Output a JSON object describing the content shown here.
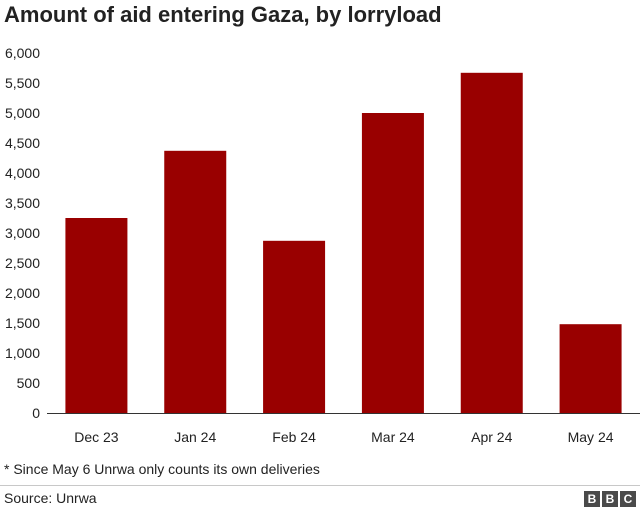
{
  "header": {
    "title": "Amount of aid entering Gaza, by lorryload"
  },
  "chart_data": {
    "type": "bar",
    "title": "Amount of aid entering Gaza, by lorryload",
    "xlabel": "",
    "ylabel": "",
    "categories": [
      "Dec 23",
      "Jan 24",
      "Feb 24",
      "Mar 24",
      "Apr 24",
      "May 24"
    ],
    "values": [
      3250,
      4370,
      2870,
      5000,
      5670,
      1480
    ],
    "ylim": [
      0,
      6000
    ],
    "yticks": [
      0,
      500,
      1000,
      1500,
      2000,
      2500,
      3000,
      3500,
      4000,
      4500,
      5000,
      5500,
      6000
    ],
    "ytick_labels": [
      "0",
      "500",
      "1,000",
      "1,500",
      "2,000",
      "2,500",
      "3,000",
      "3,500",
      "4,000",
      "4,500",
      "5,000",
      "5,500",
      "6,000"
    ],
    "grid": false,
    "bar_color": "#990000"
  },
  "footer": {
    "footnote": "* Since May 6 Unrwa only counts its own deliveries",
    "source": "Source: Unrwa",
    "logo_letters": [
      "B",
      "B",
      "C"
    ]
  }
}
